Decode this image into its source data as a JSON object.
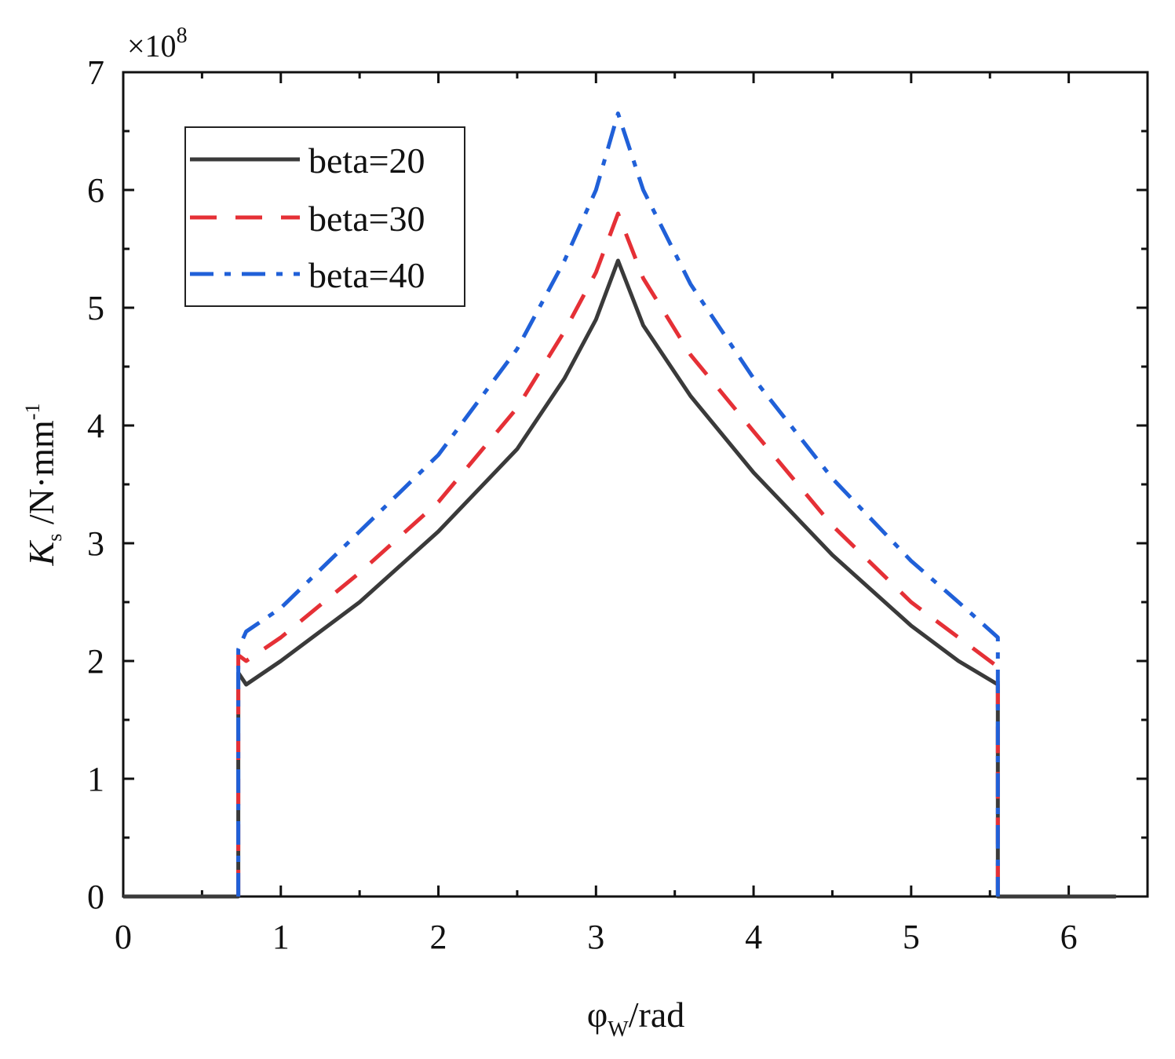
{
  "chart_data": {
    "type": "line",
    "xlabel": {
      "main": "φ",
      "sub": "W",
      "rest": "/rad"
    },
    "ylabel": {
      "main": "K",
      "sub": "s",
      "rest": " /N·mm",
      "sup": "-1"
    },
    "y_multiplier": {
      "base": "×10",
      "exp": "8"
    },
    "xlim": [
      0,
      6.5
    ],
    "ylim": [
      0,
      7
    ],
    "x_ticks": [
      "0",
      "1",
      "2",
      "3",
      "4",
      "5",
      "6"
    ],
    "y_ticks": [
      "0",
      "1",
      "2",
      "3",
      "4",
      "5",
      "6",
      "7"
    ],
    "legend_position": "top-left",
    "grid": false,
    "series": [
      {
        "name": "beta=20",
        "color": "#3a3a3a",
        "style": "solid",
        "points": [
          [
            0,
            0
          ],
          [
            0.73,
            0
          ],
          [
            0.73,
            1.9
          ],
          [
            0.78,
            1.8
          ],
          [
            1.0,
            2.0
          ],
          [
            1.5,
            2.5
          ],
          [
            2.0,
            3.1
          ],
          [
            2.5,
            3.8
          ],
          [
            2.8,
            4.4
          ],
          [
            3.0,
            4.9
          ],
          [
            3.14,
            5.4
          ],
          [
            3.3,
            4.85
          ],
          [
            3.6,
            4.25
          ],
          [
            4.0,
            3.6
          ],
          [
            4.5,
            2.9
          ],
          [
            5.0,
            2.3
          ],
          [
            5.3,
            2.0
          ],
          [
            5.55,
            1.8
          ],
          [
            5.55,
            0
          ],
          [
            6.3,
            0
          ]
        ]
      },
      {
        "name": "beta=30",
        "color": "#e53036",
        "style": "dashed",
        "points": [
          [
            0.73,
            0
          ],
          [
            0.73,
            2.05
          ],
          [
            0.78,
            2.0
          ],
          [
            1.0,
            2.2
          ],
          [
            1.5,
            2.75
          ],
          [
            2.0,
            3.35
          ],
          [
            2.5,
            4.15
          ],
          [
            2.8,
            4.8
          ],
          [
            3.0,
            5.3
          ],
          [
            3.14,
            5.8
          ],
          [
            3.3,
            5.25
          ],
          [
            3.6,
            4.6
          ],
          [
            4.0,
            3.95
          ],
          [
            4.5,
            3.15
          ],
          [
            5.0,
            2.5
          ],
          [
            5.3,
            2.2
          ],
          [
            5.55,
            1.95
          ],
          [
            5.55,
            0
          ]
        ]
      },
      {
        "name": "beta=40",
        "color": "#2060d8",
        "style": "dashdot",
        "points": [
          [
            0.73,
            0
          ],
          [
            0.73,
            2.1
          ],
          [
            0.78,
            2.25
          ],
          [
            1.0,
            2.45
          ],
          [
            1.5,
            3.1
          ],
          [
            2.0,
            3.75
          ],
          [
            2.5,
            4.65
          ],
          [
            2.8,
            5.4
          ],
          [
            3.0,
            6.0
          ],
          [
            3.14,
            6.65
          ],
          [
            3.3,
            6.0
          ],
          [
            3.6,
            5.2
          ],
          [
            4.0,
            4.4
          ],
          [
            4.5,
            3.55
          ],
          [
            5.0,
            2.85
          ],
          [
            5.3,
            2.5
          ],
          [
            5.55,
            2.2
          ],
          [
            5.55,
            0
          ]
        ]
      }
    ]
  }
}
